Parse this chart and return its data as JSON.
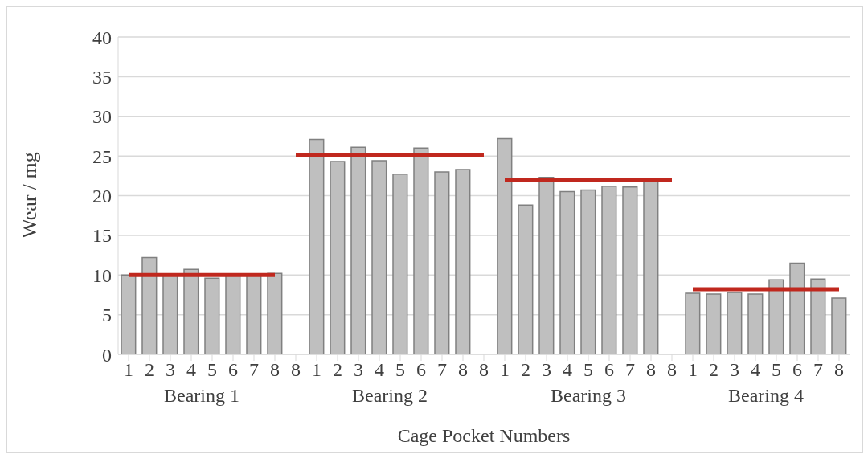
{
  "chart_data": {
    "type": "bar",
    "xlabel": "Cage Pocket Numbers",
    "ylabel": "Wear / mg",
    "categories": [
      "1",
      "2",
      "3",
      "4",
      "5",
      "6",
      "7",
      "8",
      "8",
      "1",
      "2",
      "3",
      "4",
      "5",
      "6",
      "7",
      "8",
      "8",
      "1",
      "2",
      "3",
      "4",
      "5",
      "6",
      "7",
      "8",
      "8",
      "1",
      "2",
      "3",
      "4",
      "5",
      "6",
      "7",
      "8"
    ],
    "series": [
      {
        "color": "#bfbfbf",
        "values": [
          10,
          12.2,
          10,
          10.7,
          9.6,
          10,
          10,
          10.2,
          null,
          27.1,
          24.3,
          26.1,
          24.4,
          22.7,
          26,
          23,
          23.3,
          null,
          27.2,
          18.8,
          22.3,
          20.5,
          20.7,
          21.2,
          21.1,
          22,
          null,
          7.7,
          7.6,
          7.8,
          7.6,
          9.4,
          11.5,
          9.5,
          7.1
        ]
      },
      {
        "type": "line",
        "color": "#c0281e",
        "values": [
          10,
          10,
          10,
          10,
          10,
          10,
          10,
          10,
          null,
          null,
          null,
          null,
          null,
          null,
          null,
          null,
          null,
          null,
          null,
          null,
          null,
          null,
          null,
          null,
          null,
          null,
          null,
          null,
          null,
          null,
          null,
          null,
          null,
          null,
          null
        ]
      },
      {
        "type": "line",
        "color": "#c0281e",
        "values": [
          null,
          null,
          null,
          null,
          null,
          null,
          null,
          null,
          25.1,
          25.1,
          25.1,
          25.1,
          25.1,
          25.1,
          25.1,
          25.1,
          25.1,
          25.1,
          null,
          null,
          null,
          null,
          null,
          null,
          null,
          null,
          null,
          null,
          null,
          null,
          null,
          null,
          null,
          null,
          null
        ]
      },
      {
        "type": "line",
        "color": "#c0281e",
        "values": [
          null,
          null,
          null,
          null,
          null,
          null,
          null,
          null,
          null,
          null,
          null,
          null,
          null,
          null,
          null,
          null,
          null,
          null,
          22,
          22,
          22,
          22,
          22,
          22,
          22,
          22,
          22,
          null,
          null,
          null,
          null,
          null,
          null,
          null,
          null
        ]
      },
      {
        "type": "line",
        "color": "#c0281e",
        "values": [
          null,
          null,
          null,
          null,
          null,
          null,
          null,
          null,
          null,
          null,
          null,
          null,
          null,
          null,
          null,
          null,
          null,
          null,
          null,
          null,
          null,
          null,
          null,
          null,
          null,
          null,
          null,
          8.2,
          8.2,
          8.2,
          8.2,
          8.2,
          8.2,
          8.2,
          8.2
        ]
      }
    ],
    "annotations": [
      "Bearing 1",
      "Bearing 2",
      "Bearing 3",
      "Bearing 4"
    ],
    "ylim": [
      0,
      40
    ],
    "yticks": [
      0,
      5,
      10,
      15,
      20,
      25,
      30,
      35,
      40
    ],
    "grid": "y",
    "marker": "none"
  }
}
